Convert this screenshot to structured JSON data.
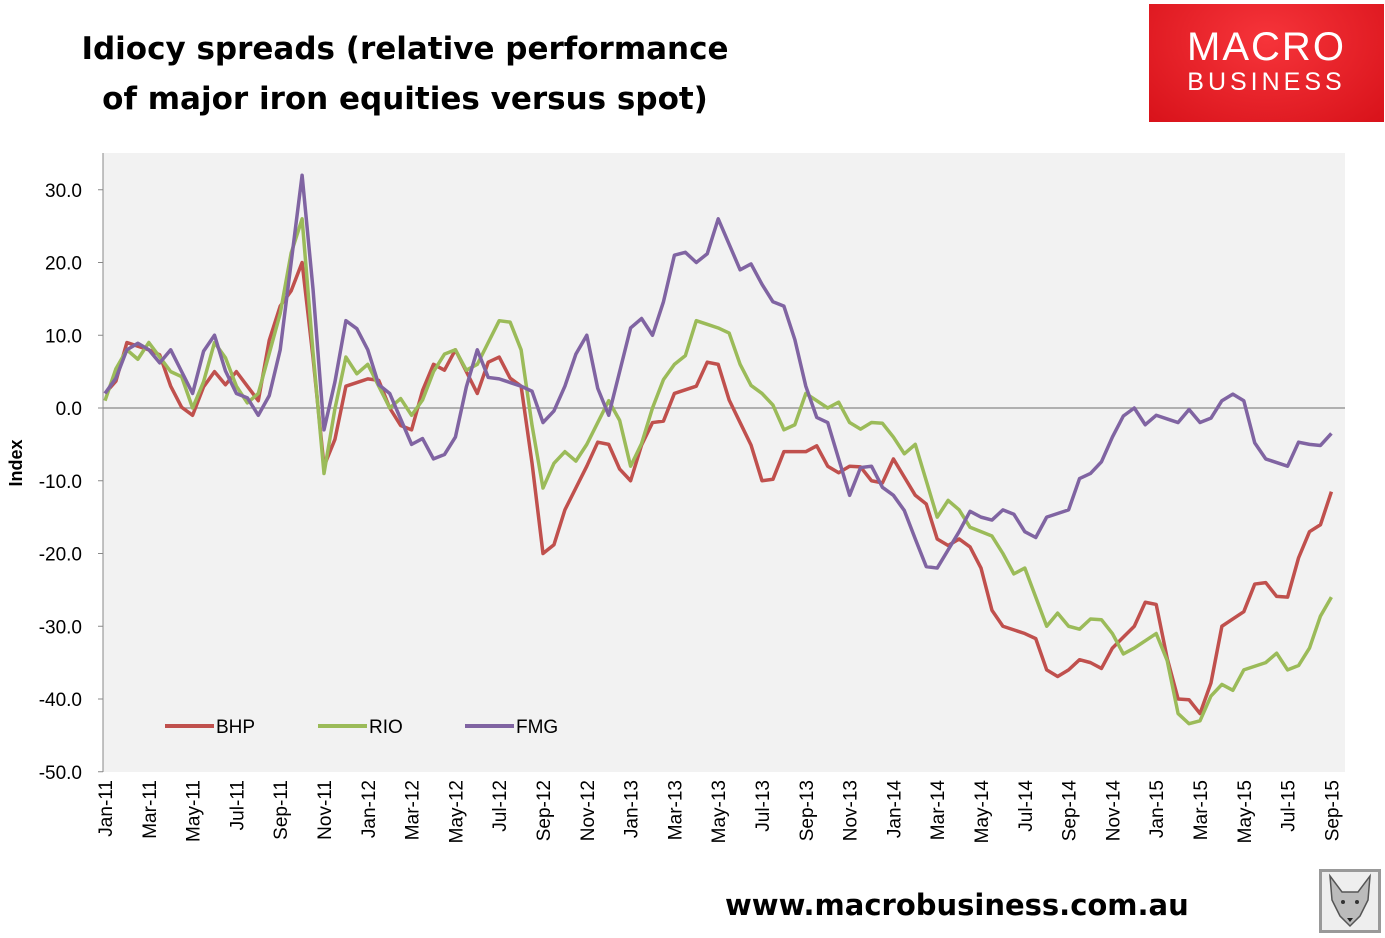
{
  "title_line1": "Idiocy spreads (relative performance",
  "title_line2": "of major iron equities versus spot)",
  "logo": {
    "line1": "MACRO",
    "line2": "BUSINESS"
  },
  "url": "www.macrobusiness.com.au",
  "chart_data": {
    "type": "line",
    "title": "Idiocy spreads (relative performance of major iron equities versus spot)",
    "ylabel": "Index",
    "xlabel": "",
    "ylim": [
      -50,
      35
    ],
    "yticks": [
      30,
      20,
      10,
      0,
      -10,
      -20,
      -30,
      -40,
      -50
    ],
    "ytick_labels": [
      "30.0",
      "20.0",
      "10.0",
      "0.0",
      "-10.0",
      "-20.0",
      "-30.0",
      "-40.0",
      "-50.0"
    ],
    "xtick_labels": [
      "Jan-11",
      "Mar-11",
      "May-11",
      "Jul-11",
      "Sep-11",
      "Nov-11",
      "Jan-12",
      "Mar-12",
      "May-12",
      "Jul-12",
      "Sep-12",
      "Nov-12",
      "Jan-13",
      "Mar-13",
      "May-13",
      "Jul-13",
      "Sep-13",
      "Nov-13",
      "Jan-14",
      "Mar-14",
      "May-14",
      "Jul-14",
      "Sep-14",
      "Nov-14",
      "Jan-15",
      "Mar-15",
      "May-15",
      "Jul-15",
      "Sep-15"
    ],
    "x_note": "monthly points from Jan-11 (index 0) to Sep-15 (index 56)",
    "legend_position": "bottom-left",
    "series": [
      {
        "name": "BHP",
        "color": "#c0504d",
        "values": [
          2,
          9,
          8,
          3,
          -1,
          5,
          5,
          1,
          14,
          20,
          -8,
          3,
          4,
          0,
          -3,
          6,
          8,
          2,
          7,
          3,
          -20,
          -14,
          -8,
          -5,
          -10,
          -2,
          2,
          3,
          6,
          -2,
          -10,
          -6,
          -6,
          -8,
          -8,
          -10,
          -7,
          -12,
          -18,
          -18,
          -22,
          -30,
          -31,
          -36,
          -36,
          -35,
          -33,
          -30,
          -27,
          -40,
          -42,
          -30,
          -28,
          -24,
          -26,
          -17,
          -11.5
        ]
      },
      {
        "name": "RIO",
        "color": "#9bbb59",
        "values": [
          1,
          8,
          9,
          5,
          0,
          9,
          3,
          2,
          13,
          26,
          -9,
          7,
          6,
          0,
          -1,
          5,
          8,
          6,
          12,
          8,
          -11,
          -6,
          -5,
          1,
          -8,
          0,
          6,
          12,
          11,
          6,
          2,
          -3,
          2,
          0,
          -2,
          -2,
          -4,
          -5,
          -15,
          -14,
          -17,
          -20,
          -22,
          -30,
          -30,
          -29,
          -31,
          -33,
          -31,
          -42,
          -43,
          -38,
          -36,
          -35,
          -36,
          -33,
          -26
        ]
      },
      {
        "name": "FMG",
        "color": "#8064a2",
        "values": [
          2,
          8,
          8,
          8,
          2,
          10,
          2,
          -1,
          8,
          32,
          -3,
          12,
          8,
          2,
          -5,
          -7,
          -4,
          8,
          4,
          3,
          -2,
          3,
          10,
          -1,
          11,
          10,
          21,
          20,
          26,
          19,
          17,
          14,
          3,
          -2,
          -12,
          -8,
          -12,
          -18,
          -22,
          -17,
          -15,
          -14,
          -17,
          -15,
          -14,
          -9,
          -4,
          0,
          -1,
          -2,
          -2,
          1,
          1,
          -7,
          -8,
          -5,
          -3.5
        ]
      }
    ]
  }
}
